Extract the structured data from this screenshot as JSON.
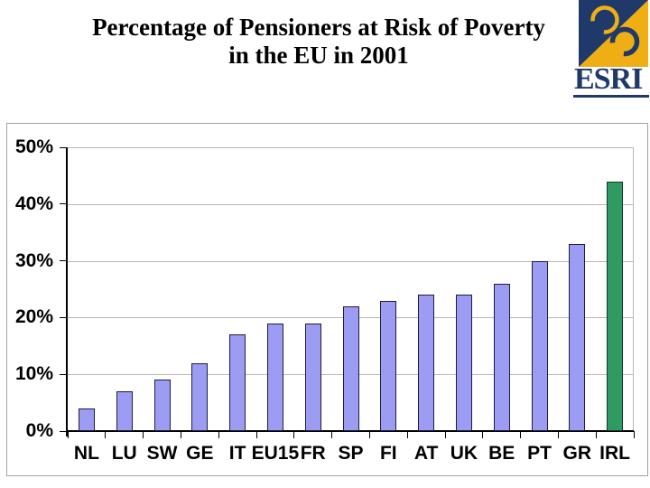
{
  "slide": {
    "title_line1": "Percentage of Pensioners at Risk of Poverty",
    "title_line2": "in the EU in 2001"
  },
  "logo": {
    "text": "ESRI",
    "navy": "#1f3a6a",
    "gold": "#efae13"
  },
  "chart_data": {
    "type": "bar",
    "title": "Percentage of Pensioners at Risk of Poverty in the EU in 2001",
    "categories": [
      "NL",
      "LU",
      "SW",
      "GE",
      "IT",
      "EU15",
      "FR",
      "SP",
      "FI",
      "AT",
      "UK",
      "BE",
      "PT",
      "GR",
      "IRL"
    ],
    "values": [
      4,
      7,
      9,
      12,
      17,
      19,
      19,
      22,
      23,
      24,
      24,
      26,
      30,
      33,
      44
    ],
    "xlabel": "",
    "ylabel": "",
    "ylim": [
      0,
      50
    ],
    "ytick_step": 10,
    "yticks": [
      "0%",
      "10%",
      "20%",
      "30%",
      "40%",
      "50%"
    ],
    "grid": true,
    "legend": false,
    "bar_color": "#9c9cf2",
    "bar_border_color": "#1c1c48",
    "highlight_category": "IRL",
    "highlight_color": "#2f9a62",
    "highlight_border_color": "#0e3a22",
    "gridline_color": "#b8b8b8"
  }
}
